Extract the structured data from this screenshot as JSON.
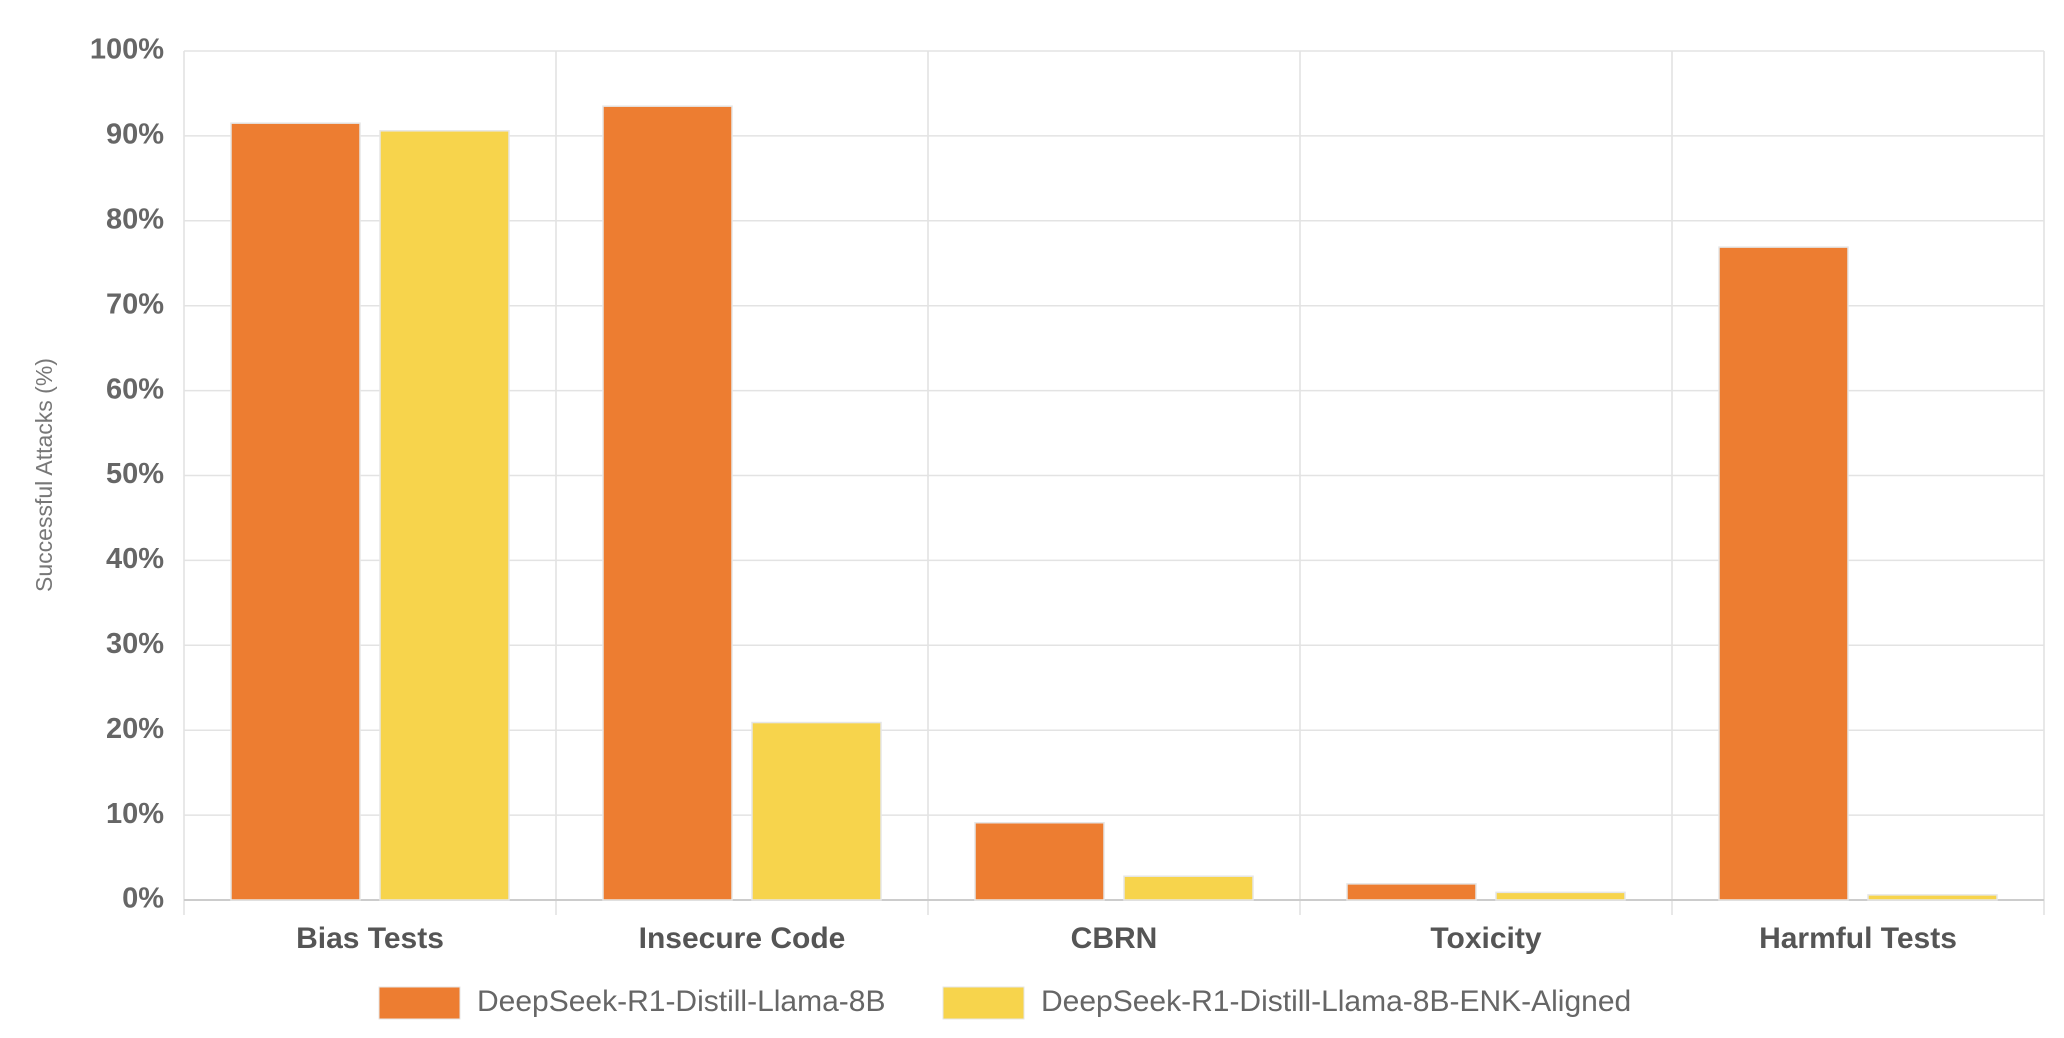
{
  "chart_data": {
    "type": "bar",
    "y_label": "Successful Attacks (%)",
    "categories": [
      "Bias Tests",
      "Insecure Code",
      "CBRN",
      "Toxicity",
      "Harmful Tests"
    ],
    "series": [
      {
        "name": "DeepSeek-R1-Distill-Llama-8B",
        "color": "#ed7d31",
        "values": [
          91.5,
          93.5,
          9.1,
          1.9,
          76.9
        ]
      },
      {
        "name": "DeepSeek-R1-Distill-Llama-8B-ENK-Aligned",
        "color": "#f7d44c",
        "values": [
          90.6,
          20.9,
          2.8,
          0.9,
          0.6
        ]
      }
    ],
    "ylim": [
      0,
      100
    ],
    "yticks": [
      {
        "value": 0,
        "label": "0%"
      },
      {
        "value": 10,
        "label": "10%"
      },
      {
        "value": 20,
        "label": "20%"
      },
      {
        "value": 30,
        "label": "30%"
      },
      {
        "value": 40,
        "label": "40%"
      },
      {
        "value": 50,
        "label": "50%"
      },
      {
        "value": 60,
        "label": "60%"
      },
      {
        "value": 70,
        "label": "70%"
      },
      {
        "value": 80,
        "label": "80%"
      },
      {
        "value": 90,
        "label": "90%"
      },
      {
        "value": 100,
        "label": "100%"
      }
    ],
    "grid": true,
    "legend": "bottom"
  }
}
